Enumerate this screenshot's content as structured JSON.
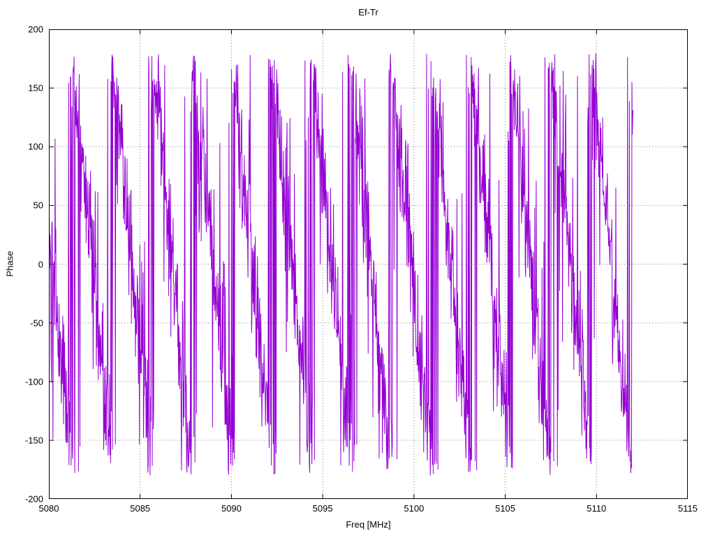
{
  "chart_data": {
    "type": "line",
    "title": "Ef-Tr",
    "xlabel": "Freq [MHz]",
    "ylabel": "Phase",
    "xlim": [
      5080,
      5115
    ],
    "ylim": [
      -200,
      200
    ],
    "x_ticks": [
      5080,
      5085,
      5090,
      5095,
      5100,
      5105,
      5110,
      5115
    ],
    "y_ticks": [
      -200,
      -150,
      -100,
      -50,
      0,
      50,
      100,
      150,
      200
    ],
    "grid": true,
    "grid_style": "dotted",
    "grid_color": "#808080",
    "border_color": "#000000",
    "background_color": "#ffffff",
    "legend_position": "none",
    "line_color": "#9400d3",
    "line_width": 1,
    "series": [
      {
        "name": "Ef-Tr",
        "model": "wrapped-linear-phase-with-noise",
        "x_start": 5080.0,
        "x_end": 5112.0,
        "n_points": 1600,
        "phase_at_x_start_deg": 35,
        "slope_deg_per_MHz": -165,
        "wrap_range_deg": [
          -180,
          180
        ],
        "noise_std_deg": 28,
        "spike_probability": 0.12,
        "spike_amplitude_deg": 120,
        "seed": 42
      }
    ]
  }
}
